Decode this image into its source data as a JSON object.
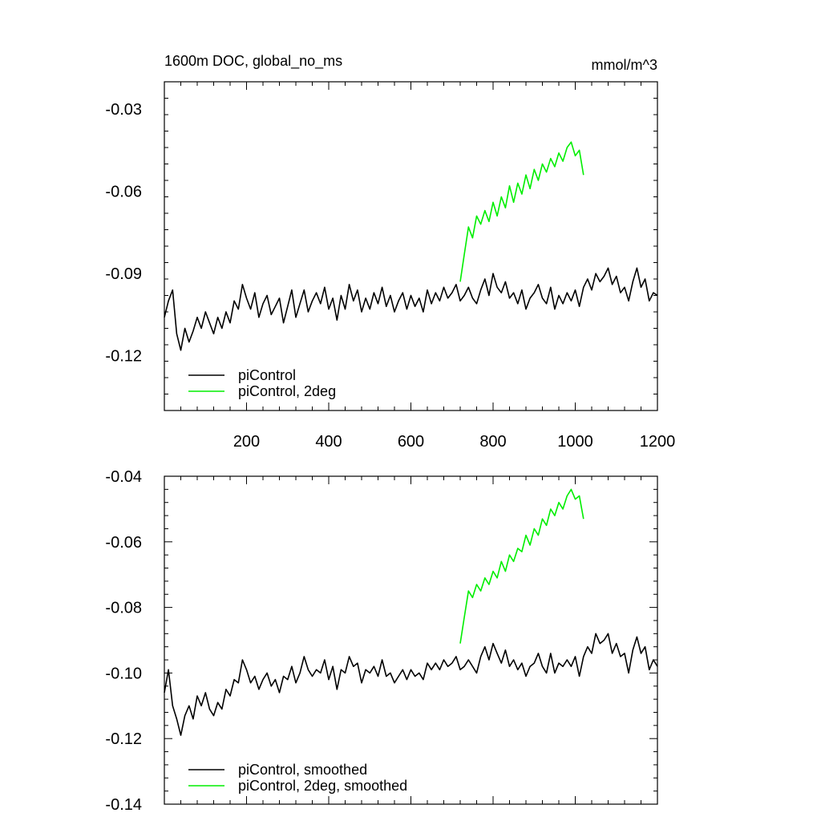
{
  "colors": {
    "piControl": "#000000",
    "piControl_2deg": "#00ee00",
    "axes": "#000000",
    "background": "#ffffff"
  },
  "chart_data": [
    {
      "type": "line",
      "title_left": "1600m DOC, global_no_ms",
      "title_right": "mmol/m^3",
      "xlabel": "",
      "ylabel": "",
      "xlim": [
        0,
        1200
      ],
      "ylim": [
        -0.14,
        -0.02
      ],
      "xticks": [
        200,
        400,
        600,
        800,
        1000,
        1200
      ],
      "xtick_labels": [
        "200",
        "400",
        "600",
        "800",
        "1000",
        "1200"
      ],
      "yticks": [
        -0.12,
        -0.09,
        -0.06,
        -0.03
      ],
      "ytick_labels": [
        "-0.12",
        "-0.09",
        "-0.06",
        "-0.03"
      ],
      "grid": false,
      "legend_position": "bottom-left",
      "series": [
        {
          "name": "piControl",
          "color": "#000000",
          "x": [
            0,
            10,
            20,
            30,
            40,
            50,
            60,
            70,
            80,
            90,
            100,
            110,
            120,
            130,
            140,
            150,
            160,
            170,
            180,
            190,
            200,
            210,
            220,
            230,
            240,
            250,
            260,
            270,
            280,
            290,
            300,
            310,
            320,
            330,
            340,
            350,
            360,
            370,
            380,
            390,
            400,
            410,
            420,
            430,
            440,
            450,
            460,
            470,
            480,
            490,
            500,
            510,
            520,
            530,
            540,
            550,
            560,
            570,
            580,
            590,
            600,
            610,
            620,
            630,
            640,
            650,
            660,
            670,
            680,
            690,
            700,
            710,
            720,
            730,
            740,
            750,
            760,
            770,
            780,
            790,
            800,
            810,
            820,
            830,
            840,
            850,
            860,
            870,
            880,
            890,
            900,
            910,
            920,
            930,
            940,
            950,
            960,
            970,
            980,
            990,
            1000,
            1010,
            1020,
            1030,
            1040,
            1050,
            1060,
            1070,
            1080,
            1090,
            1100,
            1110,
            1120,
            1130,
            1140,
            1150,
            1160,
            1170,
            1180,
            1190,
            1200
          ],
          "values": [
            -0.106,
            -0.1,
            -0.096,
            -0.112,
            -0.118,
            -0.11,
            -0.115,
            -0.111,
            -0.106,
            -0.11,
            -0.104,
            -0.108,
            -0.112,
            -0.106,
            -0.11,
            -0.104,
            -0.108,
            -0.1,
            -0.103,
            -0.094,
            -0.099,
            -0.103,
            -0.097,
            -0.106,
            -0.101,
            -0.098,
            -0.105,
            -0.102,
            -0.099,
            -0.108,
            -0.102,
            -0.096,
            -0.106,
            -0.101,
            -0.096,
            -0.104,
            -0.1,
            -0.097,
            -0.101,
            -0.095,
            -0.103,
            -0.099,
            -0.107,
            -0.098,
            -0.103,
            -0.094,
            -0.1,
            -0.096,
            -0.104,
            -0.099,
            -0.103,
            -0.097,
            -0.101,
            -0.095,
            -0.102,
            -0.098,
            -0.104,
            -0.1,
            -0.097,
            -0.103,
            -0.098,
            -0.102,
            -0.099,
            -0.104,
            -0.096,
            -0.101,
            -0.097,
            -0.1,
            -0.095,
            -0.099,
            -0.097,
            -0.094,
            -0.1,
            -0.098,
            -0.095,
            -0.099,
            -0.101,
            -0.096,
            -0.092,
            -0.098,
            -0.09,
            -0.095,
            -0.097,
            -0.093,
            -0.099,
            -0.097,
            -0.101,
            -0.096,
            -0.103,
            -0.099,
            -0.097,
            -0.094,
            -0.099,
            -0.101,
            -0.095,
            -0.103,
            -0.098,
            -0.101,
            -0.097,
            -0.1,
            -0.096,
            -0.102,
            -0.095,
            -0.092,
            -0.096,
            -0.09,
            -0.093,
            -0.091,
            -0.088,
            -0.094,
            -0.091,
            -0.097,
            -0.095,
            -0.1,
            -0.093,
            -0.088,
            -0.095,
            -0.092,
            -0.1,
            -0.097,
            -0.098
          ]
        },
        {
          "name": "piControl, 2deg",
          "color": "#00ee00",
          "x": [
            720,
            730,
            740,
            750,
            760,
            770,
            780,
            790,
            800,
            810,
            820,
            830,
            840,
            850,
            860,
            870,
            880,
            890,
            900,
            910,
            920,
            930,
            940,
            950,
            960,
            970,
            980,
            990,
            1000,
            1010,
            1020
          ],
          "values": [
            -0.093,
            -0.083,
            -0.073,
            -0.077,
            -0.069,
            -0.072,
            -0.067,
            -0.071,
            -0.064,
            -0.069,
            -0.062,
            -0.066,
            -0.058,
            -0.064,
            -0.057,
            -0.061,
            -0.054,
            -0.059,
            -0.052,
            -0.056,
            -0.05,
            -0.053,
            -0.048,
            -0.051,
            -0.046,
            -0.049,
            -0.044,
            -0.042,
            -0.047,
            -0.045,
            -0.054
          ]
        }
      ]
    },
    {
      "type": "line",
      "xlabel": "",
      "ylabel": "",
      "xlim": [
        0,
        1200
      ],
      "ylim": [
        -0.14,
        -0.04
      ],
      "xticks": [
        200,
        400,
        600,
        800,
        1000,
        1200
      ],
      "yticks": [
        -0.14,
        -0.12,
        -0.1,
        -0.08,
        -0.06,
        -0.04
      ],
      "ytick_labels": [
        "-0.14",
        "-0.12",
        "-0.10",
        "-0.08",
        "-0.06",
        "-0.04"
      ],
      "grid": false,
      "legend_position": "bottom-left",
      "series": [
        {
          "name": "piControl, smoothed",
          "color": "#000000",
          "x": [
            0,
            10,
            20,
            30,
            40,
            50,
            60,
            70,
            80,
            90,
            100,
            110,
            120,
            130,
            140,
            150,
            160,
            170,
            180,
            190,
            200,
            210,
            220,
            230,
            240,
            250,
            260,
            270,
            280,
            290,
            300,
            310,
            320,
            330,
            340,
            350,
            360,
            370,
            380,
            390,
            400,
            410,
            420,
            430,
            440,
            450,
            460,
            470,
            480,
            490,
            500,
            510,
            520,
            530,
            540,
            550,
            560,
            570,
            580,
            590,
            600,
            610,
            620,
            630,
            640,
            650,
            660,
            670,
            680,
            690,
            700,
            710,
            720,
            730,
            740,
            750,
            760,
            770,
            780,
            790,
            800,
            810,
            820,
            830,
            840,
            850,
            860,
            870,
            880,
            890,
            900,
            910,
            920,
            930,
            940,
            950,
            960,
            970,
            980,
            990,
            1000,
            1010,
            1020,
            1030,
            1040,
            1050,
            1060,
            1070,
            1080,
            1090,
            1100,
            1110,
            1120,
            1130,
            1140,
            1150,
            1160,
            1170,
            1180,
            1190,
            1200
          ],
          "values": [
            -0.106,
            -0.099,
            -0.11,
            -0.114,
            -0.119,
            -0.113,
            -0.11,
            -0.114,
            -0.107,
            -0.11,
            -0.106,
            -0.111,
            -0.113,
            -0.109,
            -0.111,
            -0.105,
            -0.107,
            -0.102,
            -0.103,
            -0.096,
            -0.099,
            -0.103,
            -0.101,
            -0.105,
            -0.102,
            -0.1,
            -0.104,
            -0.102,
            -0.106,
            -0.101,
            -0.102,
            -0.098,
            -0.103,
            -0.1,
            -0.095,
            -0.099,
            -0.101,
            -0.099,
            -0.1,
            -0.096,
            -0.102,
            -0.098,
            -0.105,
            -0.099,
            -0.1,
            -0.095,
            -0.098,
            -0.097,
            -0.103,
            -0.099,
            -0.1,
            -0.098,
            -0.101,
            -0.096,
            -0.101,
            -0.1,
            -0.103,
            -0.101,
            -0.099,
            -0.102,
            -0.099,
            -0.101,
            -0.1,
            -0.102,
            -0.097,
            -0.099,
            -0.097,
            -0.099,
            -0.096,
            -0.098,
            -0.097,
            -0.095,
            -0.099,
            -0.098,
            -0.096,
            -0.098,
            -0.1,
            -0.095,
            -0.092,
            -0.096,
            -0.091,
            -0.094,
            -0.097,
            -0.093,
            -0.098,
            -0.096,
            -0.099,
            -0.097,
            -0.101,
            -0.098,
            -0.097,
            -0.094,
            -0.098,
            -0.1,
            -0.094,
            -0.1,
            -0.097,
            -0.098,
            -0.096,
            -0.098,
            -0.095,
            -0.101,
            -0.095,
            -0.092,
            -0.094,
            -0.088,
            -0.091,
            -0.09,
            -0.088,
            -0.094,
            -0.091,
            -0.095,
            -0.094,
            -0.1,
            -0.093,
            -0.089,
            -0.094,
            -0.092,
            -0.099,
            -0.096,
            -0.098
          ]
        },
        {
          "name": "piControl, 2deg, smoothed",
          "color": "#00ee00",
          "x": [
            720,
            730,
            740,
            750,
            760,
            770,
            780,
            790,
            800,
            810,
            820,
            830,
            840,
            850,
            860,
            870,
            880,
            890,
            900,
            910,
            920,
            930,
            940,
            950,
            960,
            970,
            980,
            990,
            1000,
            1010,
            1020
          ],
          "values": [
            -0.091,
            -0.083,
            -0.075,
            -0.077,
            -0.073,
            -0.075,
            -0.071,
            -0.073,
            -0.069,
            -0.071,
            -0.066,
            -0.069,
            -0.064,
            -0.066,
            -0.062,
            -0.063,
            -0.058,
            -0.061,
            -0.056,
            -0.058,
            -0.053,
            -0.055,
            -0.05,
            -0.052,
            -0.048,
            -0.05,
            -0.046,
            -0.044,
            -0.047,
            -0.046,
            -0.053
          ]
        }
      ]
    }
  ]
}
